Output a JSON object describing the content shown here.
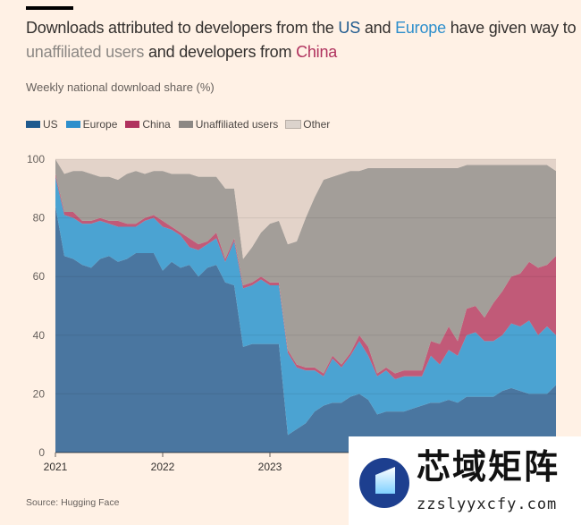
{
  "header": {
    "title_parts": [
      "Downloads attributed to developers from the ",
      "US",
      " and ",
      "Europe",
      " have given way to ",
      "unaffiliated users",
      " and developers from ",
      "China"
    ],
    "subtitle": "Weekly national download share (%)"
  },
  "source": "Source: Hugging Face",
  "watermark": {
    "text": "芯域矩阵",
    "url": "zzslyyxcfy.com"
  },
  "chart_data": {
    "type": "area",
    "stacked": true,
    "title": "Downloads attributed to developers from the US and Europe have given way to unaffiliated users and developers from China",
    "ylabel": "Weekly national download share (%)",
    "xlabel": "",
    "ylim": [
      0,
      100
    ],
    "yticks": [
      "0",
      "20",
      "40",
      "60",
      "80",
      "100"
    ],
    "xticks": [
      "2021",
      "2022",
      "2023"
    ],
    "grid": true,
    "legend_position": "top-left",
    "x": [
      "2021-01",
      "2021-02",
      "2021-03",
      "2021-04",
      "2021-05",
      "2021-06",
      "2021-07",
      "2021-08",
      "2021-09",
      "2021-10",
      "2021-11",
      "2021-12",
      "2022-01",
      "2022-02",
      "2022-03",
      "2022-04",
      "2022-05",
      "2022-06",
      "2022-07",
      "2022-08",
      "2022-09",
      "2022-10",
      "2022-11",
      "2022-12",
      "2023-01",
      "2023-02",
      "2023-03",
      "2023-04",
      "2023-05",
      "2023-06",
      "2023-07",
      "2023-08",
      "2023-09",
      "2023-10",
      "2023-11",
      "2023-12",
      "2024-01",
      "2024-02",
      "2024-03",
      "2024-04",
      "2024-05",
      "2024-06",
      "2024-07",
      "2024-08",
      "2024-09",
      "2024-10",
      "2024-11",
      "2024-12",
      "2025-01",
      "2025-02",
      "2025-03",
      "2025-04",
      "2025-05",
      "2025-06",
      "2025-07",
      "2025-08",
      "2025-09"
    ],
    "series": [
      {
        "name": "US",
        "color": "#4a76a0",
        "legend_color": "#1f5a8e",
        "values": [
          84,
          67,
          66,
          64,
          63,
          66,
          67,
          65,
          66,
          68,
          68,
          68,
          62,
          65,
          63,
          64,
          60,
          63,
          64,
          58,
          57,
          36,
          37,
          37,
          37,
          37,
          6,
          8,
          10,
          14,
          16,
          17,
          17,
          19,
          20,
          18,
          13,
          14,
          14,
          14,
          15,
          16,
          17,
          17,
          18,
          17,
          19,
          19,
          19,
          19,
          21,
          22,
          21,
          20,
          20,
          20,
          23
        ]
      },
      {
        "name": "Europe",
        "color": "#4ba3d2",
        "legend_color": "#2e8fcc",
        "values": [
          10,
          14,
          14,
          14,
          15,
          13,
          11,
          12,
          11,
          9,
          11,
          12,
          15,
          11,
          11,
          6,
          9,
          8,
          9,
          7,
          15,
          20,
          20,
          22,
          20,
          20,
          28,
          21,
          18,
          14,
          10,
          15,
          12,
          14,
          18,
          15,
          13,
          14,
          11,
          12,
          11,
          10,
          16,
          13,
          17,
          16,
          21,
          22,
          19,
          19,
          19,
          22,
          22,
          25,
          20,
          23,
          17
        ]
      },
      {
        "name": "China",
        "color": "#c15a78",
        "legend_color": "#b0325e",
        "values": [
          1,
          1,
          2,
          1,
          1,
          1,
          1,
          2,
          1,
          1,
          1,
          1,
          2,
          1,
          1,
          3,
          2,
          1,
          2,
          1,
          1,
          1,
          1,
          1,
          1,
          1,
          1,
          1,
          1,
          1,
          1,
          1,
          1,
          1,
          2,
          3,
          1,
          1,
          2,
          2,
          2,
          2,
          5,
          7,
          8,
          5,
          9,
          9,
          8,
          13,
          15,
          16,
          18,
          20,
          23,
          21,
          27
        ]
      },
      {
        "name": "Unaffiliated users",
        "color": "#a39e99",
        "legend_color": "#8c8884",
        "values": [
          5,
          13,
          14,
          17,
          16,
          14,
          15,
          14,
          17,
          18,
          15,
          15,
          17,
          18,
          20,
          22,
          23,
          22,
          19,
          24,
          17,
          9,
          12,
          15,
          20,
          21,
          36,
          42,
          51,
          58,
          66,
          61,
          65,
          62,
          56,
          61,
          70,
          68,
          70,
          69,
          69,
          69,
          59,
          60,
          54,
          59,
          49,
          48,
          52,
          47,
          43,
          38,
          37,
          33,
          35,
          34,
          29
        ]
      },
      {
        "name": "Other",
        "color": "#e3d3c9",
        "legend_color": "#dcd3cc",
        "values": [
          0,
          5,
          4,
          4,
          5,
          6,
          6,
          7,
          5,
          4,
          5,
          4,
          4,
          5,
          5,
          5,
          6,
          6,
          6,
          10,
          10,
          34,
          30,
          25,
          22,
          21,
          29,
          28,
          20,
          13,
          7,
          6,
          5,
          4,
          4,
          3,
          3,
          3,
          3,
          3,
          3,
          3,
          3,
          3,
          3,
          3,
          2,
          2,
          2,
          2,
          2,
          2,
          2,
          2,
          2,
          2,
          4
        ]
      }
    ]
  }
}
